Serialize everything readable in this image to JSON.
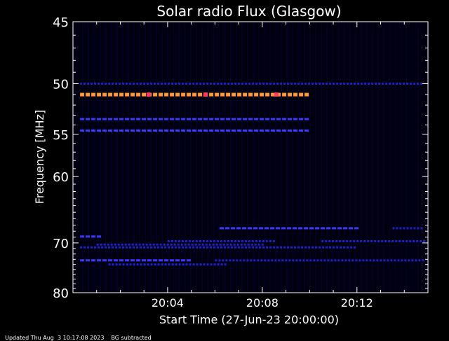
{
  "chart_data": {
    "type": "heatmap",
    "title": "Solar radio Flux (Glasgow)",
    "xlabel": "Start Time (27-Jun-23 20:00:00)",
    "ylabel": "Frequency [MHz]",
    "xlim_minutes": [
      0,
      15
    ],
    "y_ticks": [
      "45",
      "50",
      "55",
      "60",
      "70",
      "80"
    ],
    "x_ticks": [
      "20:04",
      "20:08",
      "20:12"
    ],
    "x_tick_minutes": [
      4,
      8,
      12
    ],
    "colors": {
      "background": "#000010",
      "weak": "#2020c8",
      "medium": "#3a3aff",
      "strong": "#ff9a30",
      "peak": "#ff3a6a"
    },
    "bands": [
      {
        "freq": 51.0,
        "start": 0.3,
        "end": 9.8,
        "level": "strong"
      },
      {
        "freq": 50.0,
        "start": 0.3,
        "end": 14.8,
        "level": "weak"
      },
      {
        "freq": 53.4,
        "start": 0.3,
        "end": 9.8,
        "level": "medium"
      },
      {
        "freq": 54.6,
        "start": 0.3,
        "end": 9.8,
        "level": "medium"
      },
      {
        "freq": 67.5,
        "start": 6.2,
        "end": 12.0,
        "level": "medium"
      },
      {
        "freq": 67.5,
        "start": 13.5,
        "end": 14.8,
        "level": "weak"
      },
      {
        "freq": 68.9,
        "start": 0.3,
        "end": 1.2,
        "level": "medium"
      },
      {
        "freq": 69.7,
        "start": 4.0,
        "end": 8.5,
        "level": "weak"
      },
      {
        "freq": 69.7,
        "start": 10.5,
        "end": 14.8,
        "level": "weak"
      },
      {
        "freq": 70.3,
        "start": 1.0,
        "end": 8.0,
        "level": "weak"
      },
      {
        "freq": 70.8,
        "start": 0.3,
        "end": 12.0,
        "level": "weak"
      },
      {
        "freq": 73.2,
        "start": 0.3,
        "end": 5.0,
        "level": "medium"
      },
      {
        "freq": 73.2,
        "start": 6.0,
        "end": 14.8,
        "level": "weak"
      },
      {
        "freq": 74.0,
        "start": 1.5,
        "end": 6.5,
        "level": "weak"
      }
    ],
    "peaks": [
      {
        "freq": 51.0,
        "minute": 3.2
      },
      {
        "freq": 51.0,
        "minute": 5.6
      },
      {
        "freq": 51.0,
        "minute": 8.6
      }
    ]
  },
  "footer": {
    "updated": "Updated Thu Aug  3 10:17:08 2023",
    "note": "BG subtracted"
  }
}
